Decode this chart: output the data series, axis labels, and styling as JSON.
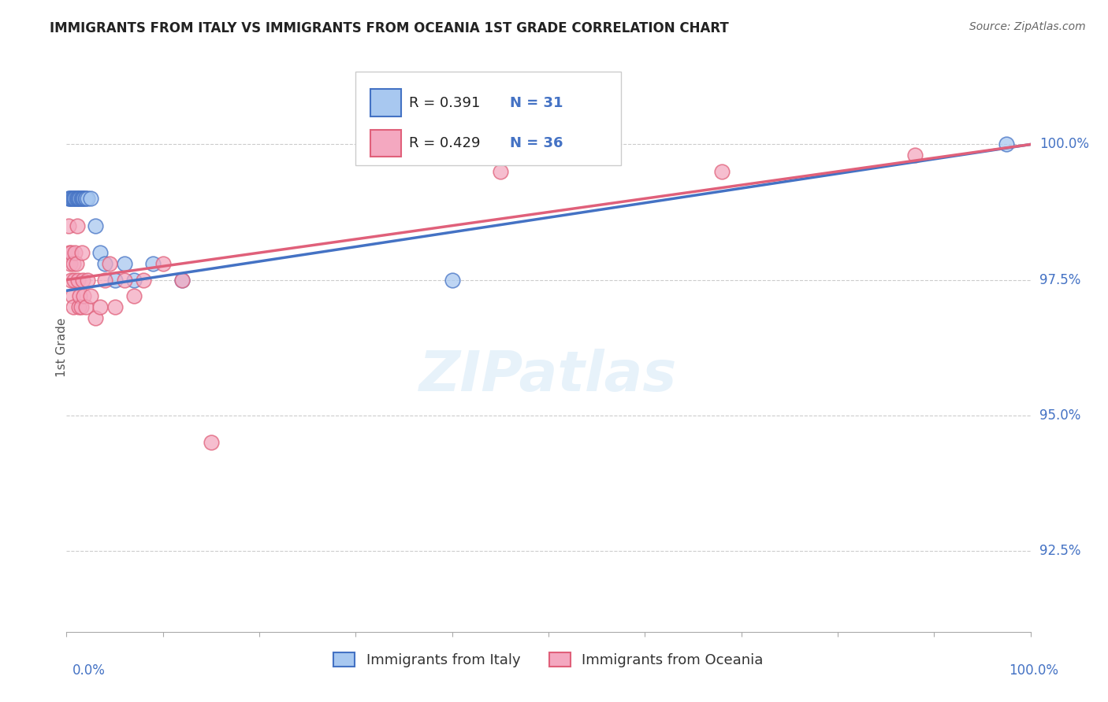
{
  "title": "IMMIGRANTS FROM ITALY VS IMMIGRANTS FROM OCEANIA 1ST GRADE CORRELATION CHART",
  "source": "Source: ZipAtlas.com",
  "ylabel": "1st Grade",
  "ylabel_ticks": [
    "92.5%",
    "95.0%",
    "97.5%",
    "100.0%"
  ],
  "ylabel_tick_vals": [
    92.5,
    95.0,
    97.5,
    100.0
  ],
  "xlim": [
    0.0,
    100.0
  ],
  "ylim": [
    91.0,
    101.5
  ],
  "R_italy": 0.391,
  "N_italy": 31,
  "R_oceania": 0.429,
  "N_oceania": 36,
  "color_italy": "#A8C8F0",
  "color_oceania": "#F4A8C0",
  "trendline_color_italy": "#4472C4",
  "trendline_color_oceania": "#E0607A",
  "legend_label_italy": "Immigrants from Italy",
  "legend_label_oceania": "Immigrants from Oceania",
  "italy_x": [
    0.2,
    0.3,
    0.4,
    0.5,
    0.6,
    0.7,
    0.8,
    0.9,
    1.0,
    1.1,
    1.2,
    1.3,
    1.4,
    1.5,
    1.6,
    1.7,
    1.8,
    1.9,
    2.0,
    2.2,
    2.5,
    3.0,
    3.5,
    4.0,
    5.0,
    6.0,
    7.0,
    9.0,
    12.0,
    40.0,
    97.5
  ],
  "italy_y": [
    99.0,
    99.0,
    99.0,
    99.0,
    99.0,
    99.0,
    99.0,
    99.0,
    99.0,
    99.0,
    99.0,
    99.0,
    99.0,
    99.0,
    99.0,
    99.0,
    99.0,
    99.0,
    99.0,
    99.0,
    99.0,
    98.5,
    98.0,
    97.8,
    97.5,
    97.8,
    97.5,
    97.8,
    97.5,
    97.5,
    100.0
  ],
  "oceania_x": [
    0.2,
    0.3,
    0.4,
    0.5,
    0.5,
    0.6,
    0.7,
    0.7,
    0.8,
    0.9,
    1.0,
    1.1,
    1.2,
    1.3,
    1.4,
    1.5,
    1.6,
    1.7,
    1.8,
    2.0,
    2.2,
    2.5,
    3.0,
    3.5,
    4.0,
    4.5,
    5.0,
    6.0,
    7.0,
    8.0,
    10.0,
    12.0,
    15.0,
    45.0,
    68.0,
    88.0
  ],
  "oceania_y": [
    98.5,
    98.0,
    97.8,
    97.5,
    98.0,
    97.2,
    97.0,
    97.8,
    97.5,
    98.0,
    97.8,
    98.5,
    97.5,
    97.0,
    97.2,
    97.0,
    98.0,
    97.5,
    97.2,
    97.0,
    97.5,
    97.2,
    96.8,
    97.0,
    97.5,
    97.8,
    97.0,
    97.5,
    97.2,
    97.5,
    97.8,
    97.5,
    94.5,
    99.5,
    99.5,
    99.8
  ]
}
